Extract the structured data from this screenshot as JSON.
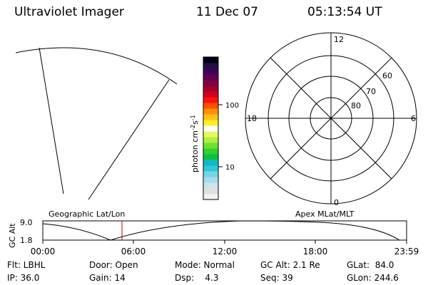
{
  "header": {
    "title": "Ultraviolet Imager",
    "date": "11 Dec 07",
    "time": "05:13:54 UT"
  },
  "colorbar": {
    "label": "photon cm",
    "label_sup1": "-2",
    "label_s": "s",
    "label_sup2": "-1",
    "ticks": [
      "100",
      "10"
    ],
    "colors": [
      "#f2f2f2",
      "#e0e0e0",
      "#c8e4ec",
      "#a8dcea",
      "#70d8e4",
      "#30c8d8",
      "#10b8c8",
      "#10c040",
      "#30d030",
      "#70e030",
      "#b0f040",
      "#e8f860",
      "#ffffff",
      "#fff020",
      "#ffc020",
      "#ff9000",
      "#ff5000",
      "#ff1010",
      "#d00020",
      "#a00030",
      "#800040",
      "#600050",
      "#400058",
      "#201040",
      "#000018"
    ]
  },
  "polar_plot": {
    "mlt_labels": [
      "12",
      "6",
      "0",
      "18"
    ],
    "lat_labels": [
      "60",
      "70",
      "80"
    ]
  },
  "timeline": {
    "y_axis_label": "GC Alt",
    "y_ticks": [
      "9.0",
      "1.8"
    ],
    "left_label": "Geographic Lat/Lon",
    "right_label": "Apex MLat/MLT",
    "x_ticks": [
      "00:00",
      "06:00",
      "12:00",
      "18:00",
      "23:59"
    ],
    "marker_color": "#cc0000"
  },
  "info": {
    "flt": "Flt: LBHL",
    "ip": "IP: 36.0",
    "door": "Door: Open",
    "gain": "Gain: 14",
    "mode": "Mode: Normal",
    "dsp": "Dsp:    4.3",
    "gcalt": "GC Alt: 2.1 Re",
    "seq": "Seq: 39",
    "glat": "GLat:  84.0",
    "glon": "GLon: 244.6"
  }
}
